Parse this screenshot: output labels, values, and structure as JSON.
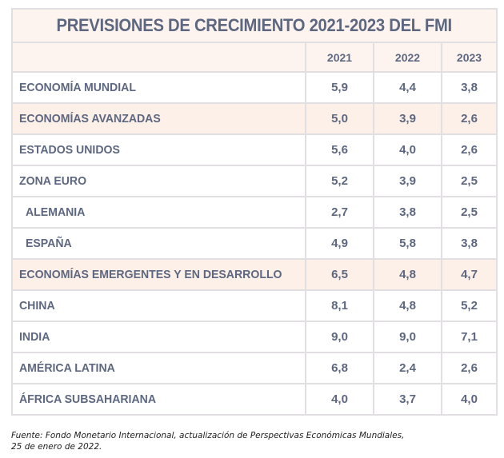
{
  "title": "PREVISIONES DE CRECIMIENTO 2021-2023 DEL FMI",
  "columns": [
    "2021",
    "2022",
    "2023"
  ],
  "rows": [
    {
      "label": "ECONOMÍA MUNDIAL",
      "values": [
        "5,9",
        "4,4",
        "3,8"
      ]
    },
    {
      "label": "ECONOMÍAS AVANZADAS",
      "values": [
        "5,0",
        "3,9",
        "2,6"
      ]
    },
    {
      "label": "ESTADOS UNIDOS",
      "values": [
        "5,6",
        "4,0",
        "2,6"
      ]
    },
    {
      "label": "ZONA EURO",
      "values": [
        "5,2",
        "3,9",
        "2,5"
      ]
    },
    {
      "label": "ALEMANIA",
      "values": [
        "2,7",
        "3,8",
        "2,5"
      ]
    },
    {
      "label": "ESPAÑA",
      "values": [
        "4,9",
        "5,8",
        "3,8"
      ]
    },
    {
      "label": "ECONOMÍAS EMERGENTES Y EN DESARROLLO",
      "values": [
        "6,5",
        "4,8",
        "4,7"
      ]
    },
    {
      "label": "CHINA",
      "values": [
        "8,1",
        "4,8",
        "5,2"
      ]
    },
    {
      "label": "INDIA",
      "values": [
        "9,0",
        "9,0",
        "7,1"
      ]
    },
    {
      "label": "AMÉRICA LATINA",
      "values": [
        "6,8",
        "2,4",
        "2,6"
      ]
    },
    {
      "label": "ÁFRICA SUBSAHARIANA",
      "values": [
        "4,0",
        "3,7",
        "4,0"
      ]
    }
  ],
  "source": {
    "line1": "Fuente: Fondo Monetario Internacional, actualización de Perspectivas Económicas Mundiales,",
    "line2": "25 de enero de 2022."
  }
}
